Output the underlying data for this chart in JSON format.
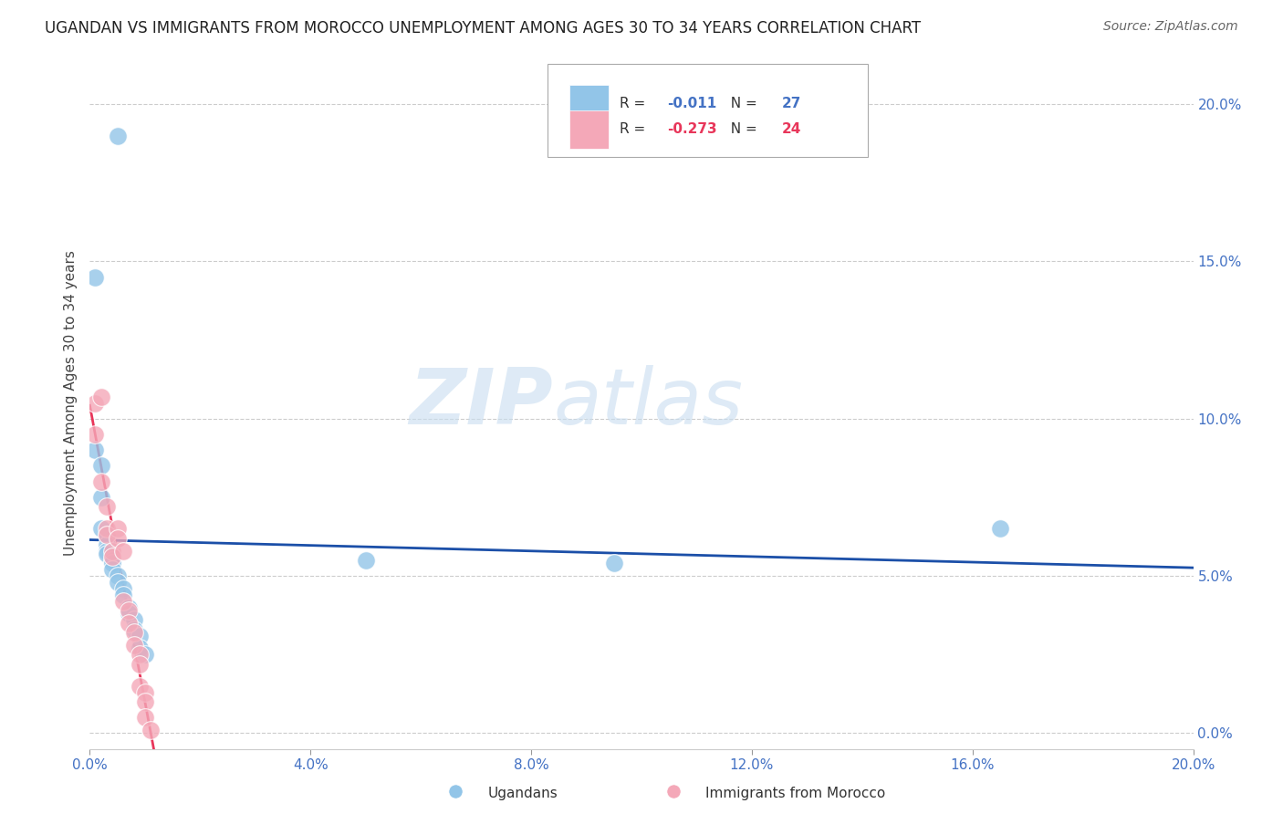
{
  "title": "UGANDAN VS IMMIGRANTS FROM MOROCCO UNEMPLOYMENT AMONG AGES 30 TO 34 YEARS CORRELATION CHART",
  "source": "Source: ZipAtlas.com",
  "ylabel": "Unemployment Among Ages 30 to 34 years",
  "xlim": [
    0.0,
    0.2
  ],
  "ylim": [
    -0.005,
    0.215
  ],
  "yticks": [
    0.0,
    0.05,
    0.1,
    0.15,
    0.2
  ],
  "yticklabels": [
    "0.0%",
    "5.0%",
    "10.0%",
    "15.0%",
    "20.0%"
  ],
  "xticks": [
    0.0,
    0.04,
    0.08,
    0.12,
    0.16,
    0.2
  ],
  "xticklabels": [
    "0.0%",
    "4.0%",
    "8.0%",
    "12.0%",
    "16.0%",
    "20.0%"
  ],
  "ugandans_x": [
    0.005,
    0.001,
    0.001,
    0.002,
    0.002,
    0.002,
    0.003,
    0.003,
    0.003,
    0.003,
    0.004,
    0.004,
    0.004,
    0.005,
    0.005,
    0.006,
    0.006,
    0.007,
    0.007,
    0.008,
    0.008,
    0.009,
    0.009,
    0.01,
    0.05,
    0.095,
    0.165
  ],
  "ugandans_y": [
    0.19,
    0.145,
    0.09,
    0.085,
    0.075,
    0.065,
    0.063,
    0.06,
    0.058,
    0.057,
    0.055,
    0.054,
    0.052,
    0.05,
    0.048,
    0.046,
    0.044,
    0.04,
    0.038,
    0.036,
    0.033,
    0.031,
    0.027,
    0.025,
    0.055,
    0.054,
    0.065
  ],
  "morocco_x": [
    0.001,
    0.001,
    0.002,
    0.002,
    0.003,
    0.003,
    0.003,
    0.004,
    0.004,
    0.005,
    0.005,
    0.006,
    0.006,
    0.007,
    0.007,
    0.008,
    0.008,
    0.009,
    0.009,
    0.009,
    0.01,
    0.01,
    0.01,
    0.011
  ],
  "morocco_y": [
    0.105,
    0.095,
    0.107,
    0.08,
    0.072,
    0.065,
    0.063,
    0.058,
    0.056,
    0.065,
    0.062,
    0.058,
    0.042,
    0.039,
    0.035,
    0.032,
    0.028,
    0.025,
    0.022,
    0.015,
    0.013,
    0.01,
    0.005,
    0.001
  ],
  "ugandans_R": "-0.011",
  "ugandans_N": "27",
  "morocco_R": "-0.273",
  "morocco_N": "24",
  "blue_color": "#92C5E8",
  "pink_color": "#F4A8B8",
  "trend_blue": "#1B4FA8",
  "trend_pink": "#E8365A",
  "axis_color": "#4472C4",
  "watermark_zip": "#C5DCF0",
  "watermark_atlas": "#C5DCF0",
  "background_color": "#FFFFFF",
  "grid_color": "#C0C0C0"
}
